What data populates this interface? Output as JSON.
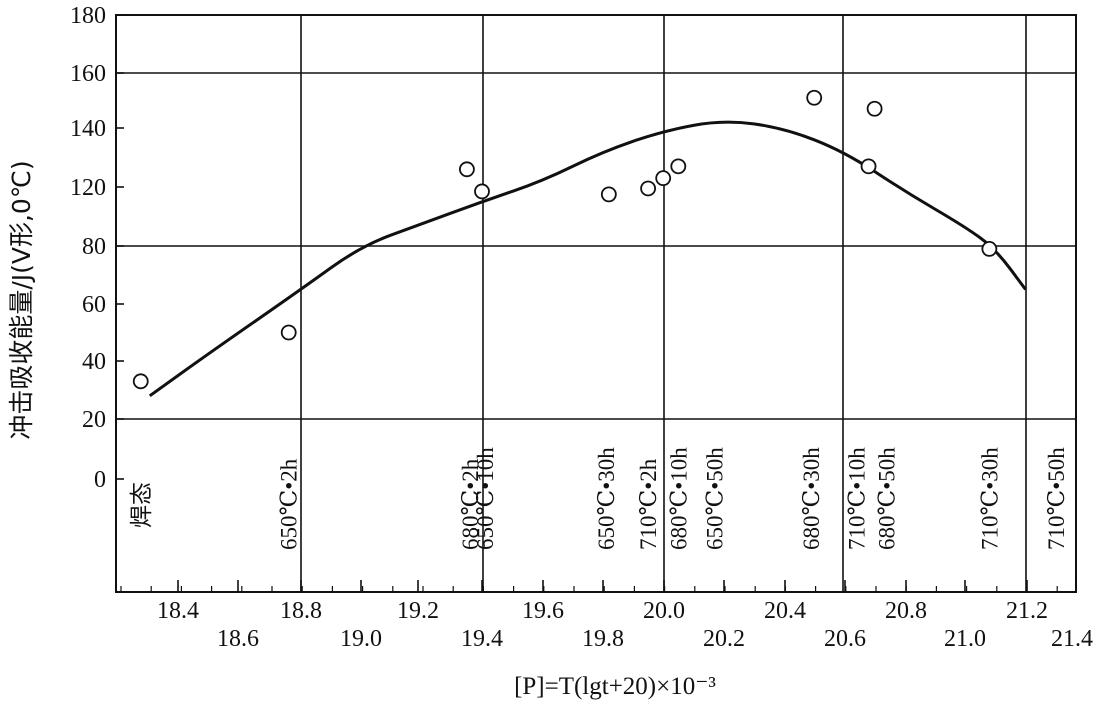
{
  "chart_data": {
    "type": "scatter",
    "ylabel": "冲击吸收能量/J(V形,0℃)",
    "xlabel": "[P]=T(lgt+20)×10⁻³",
    "yticks": [
      0,
      20,
      40,
      60,
      80,
      120,
      140,
      160,
      180
    ],
    "xticks_upper": [
      "18.4",
      "18.6",
      "18.8",
      "19.0",
      "19.2",
      "19.4",
      "19.6",
      "19.8",
      "20.0",
      "20.2",
      "20.4",
      "20.6",
      "20.8",
      "21.0",
      "21.2",
      "21.4"
    ],
    "points": [
      {
        "x": 18.27,
        "y": 33
      },
      {
        "x": 18.76,
        "y": 50
      },
      {
        "x": 19.35,
        "y": 126
      },
      {
        "x": 19.4,
        "y": 117
      },
      {
        "x": 19.82,
        "y": 115
      },
      {
        "x": 19.95,
        "y": 119
      },
      {
        "x": 20.0,
        "y": 123
      },
      {
        "x": 20.05,
        "y": 127
      },
      {
        "x": 20.5,
        "y": 151
      },
      {
        "x": 20.68,
        "y": 127
      },
      {
        "x": 20.7,
        "y": 147
      },
      {
        "x": 21.08,
        "y": 79
      }
    ],
    "curve": [
      {
        "x": 18.3,
        "y": 28
      },
      {
        "x": 18.5,
        "y": 43
      },
      {
        "x": 18.8,
        "y": 65
      },
      {
        "x": 19.0,
        "y": 80
      },
      {
        "x": 19.2,
        "y": 95
      },
      {
        "x": 19.4,
        "y": 110
      },
      {
        "x": 19.6,
        "y": 122
      },
      {
        "x": 19.8,
        "y": 132
      },
      {
        "x": 20.0,
        "y": 139
      },
      {
        "x": 20.2,
        "y": 143
      },
      {
        "x": 20.4,
        "y": 140
      },
      {
        "x": 20.6,
        "y": 132
      },
      {
        "x": 20.8,
        "y": 117
      },
      {
        "x": 21.0,
        "y": 93
      },
      {
        "x": 21.1,
        "y": 79
      },
      {
        "x": 21.2,
        "y": 65
      }
    ],
    "conditions": [
      {
        "label": "焊态",
        "x": 18.33
      },
      {
        "label": "650℃•2h",
        "x": 18.76
      },
      {
        "label": "680℃•2h",
        "x": 19.36
      },
      {
        "label": "650℃•10h",
        "x": 19.41
      },
      {
        "label": "650℃•30h",
        "x": 19.81
      },
      {
        "label": "710℃•2h",
        "x": 19.95
      },
      {
        "label": "680℃•10h",
        "x": 20.05
      },
      {
        "label": "650℃•50h",
        "x": 20.17
      },
      {
        "label": "680℃•30h",
        "x": 20.49
      },
      {
        "label": "710℃•10h",
        "x": 20.64
      },
      {
        "label": "680℃•50h",
        "x": 20.74
      },
      {
        "label": "710℃•30h",
        "x": 21.08
      },
      {
        "label": "710℃•50h",
        "x": 21.3
      }
    ],
    "grid": true
  }
}
